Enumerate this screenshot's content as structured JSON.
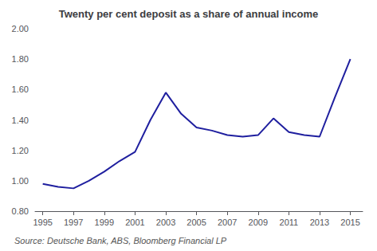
{
  "chart_data": {
    "type": "line",
    "title": "Twenty per cent deposit as a share of annual income",
    "source": "Source: Deutsche Bank, ABS, Bloomberg Financial LP",
    "x": [
      1995,
      1996,
      1997,
      1998,
      1999,
      2000,
      2001,
      2002,
      2003,
      2004,
      2005,
      2006,
      2007,
      2008,
      2009,
      2010,
      2011,
      2012,
      2013,
      2014,
      2015
    ],
    "values": [
      0.98,
      0.96,
      0.95,
      1.0,
      1.06,
      1.13,
      1.19,
      1.4,
      1.58,
      1.44,
      1.35,
      1.33,
      1.3,
      1.29,
      1.3,
      1.41,
      1.32,
      1.3,
      1.29,
      1.55,
      1.8
    ],
    "color": "#1f1f9f",
    "xlim": [
      1994.5,
      2015.8
    ],
    "xticks": [
      1995,
      1997,
      1999,
      2001,
      2003,
      2005,
      2007,
      2009,
      2011,
      2013,
      2015
    ],
    "ylim": [
      0.8,
      2.0
    ],
    "yticks": [
      {
        "value": 0.8,
        "label": "0.80"
      },
      {
        "value": 1,
        "label": "1.00"
      },
      {
        "value": 1.2,
        "label": "1.20"
      },
      {
        "value": 1.4,
        "label": "1.40"
      },
      {
        "value": 1.6,
        "label": "1.60"
      },
      {
        "value": 1.8,
        "label": "1.80"
      },
      {
        "value": 2,
        "label": "2.00"
      }
    ],
    "grid": false
  }
}
